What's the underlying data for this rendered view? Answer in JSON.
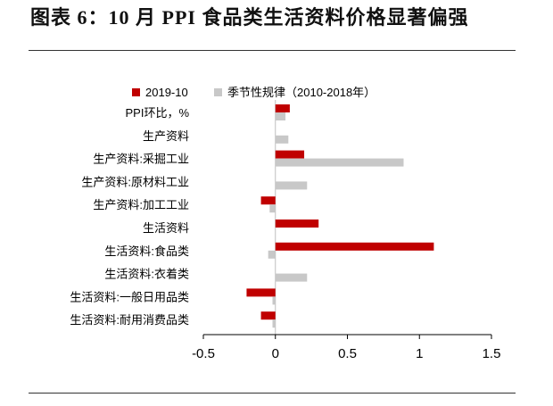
{
  "header": {
    "title": "图表 6：10 月 PPI 食品类生活资料价格显著偏强"
  },
  "chart_data": {
    "type": "bar",
    "orientation": "horizontal",
    "categories": [
      "PPI环比，%",
      "生产资料",
      "生产资料:采掘工业",
      "生产资料:原材料工业",
      "生产资料:加工工业",
      "生活资料",
      "生活资料:食品类",
      "生活资料:衣着类",
      "生活资料:一般日用品类",
      "生活资料:耐用消费品类"
    ],
    "series": [
      {
        "name": "2019-10",
        "color": "#c00000",
        "values": [
          0.1,
          0.0,
          0.2,
          0.0,
          -0.1,
          0.3,
          1.1,
          0.0,
          -0.2,
          -0.1
        ]
      },
      {
        "name": "季节性规律（2010-2018年）",
        "color": "#c8c8c8",
        "values": [
          0.07,
          0.09,
          0.89,
          0.22,
          -0.04,
          0.0,
          -0.05,
          0.22,
          -0.02,
          -0.02
        ]
      }
    ],
    "xlim": [
      -0.5,
      1.5
    ],
    "xticks": [
      "-0.5",
      "0",
      "0.5",
      "1",
      "1.5"
    ],
    "legend_position": "top",
    "grid": false
  }
}
